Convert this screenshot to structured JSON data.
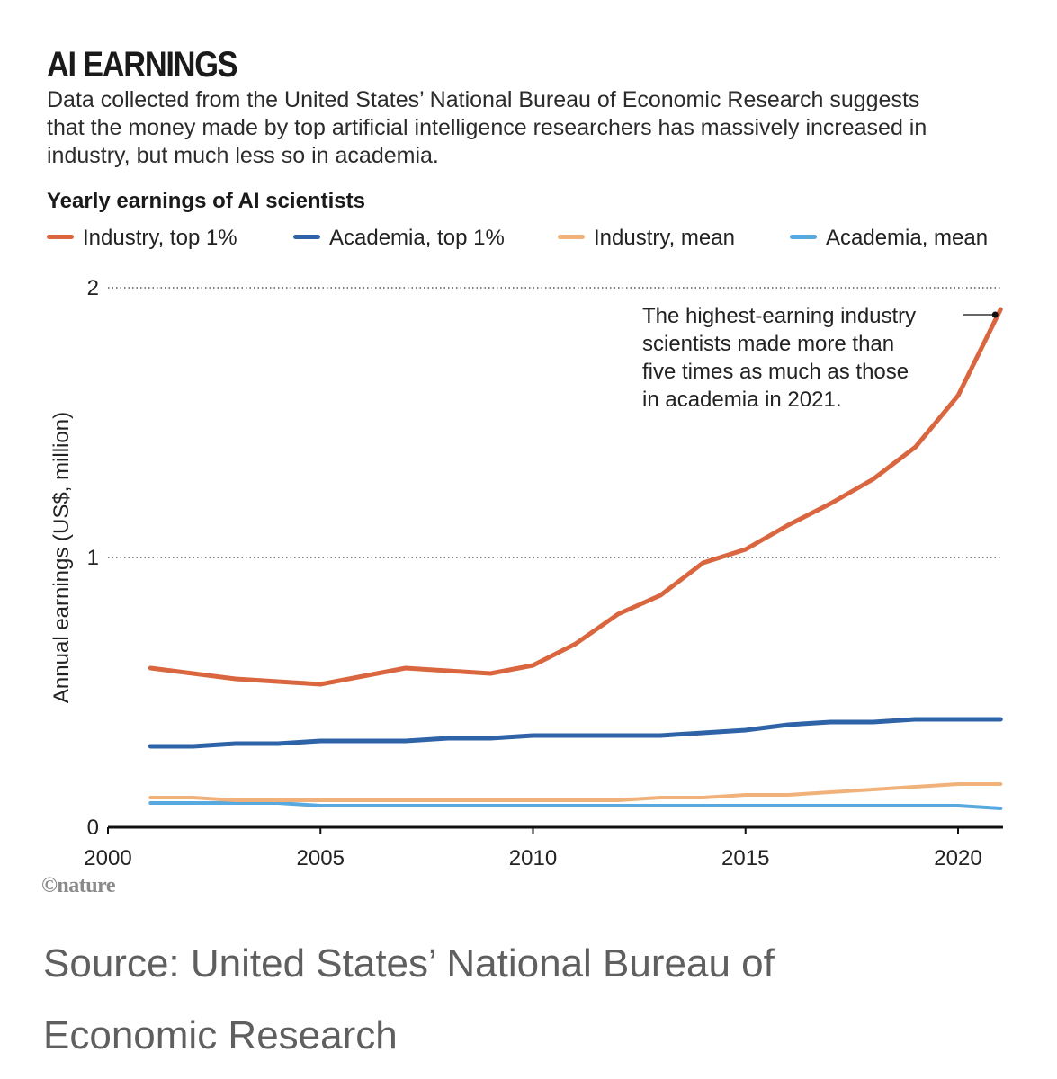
{
  "header": {
    "title": "AI EARNINGS",
    "subtitle": "Data collected from the United States’ National Bureau of Economic Research suggests that the money made by top artificial intelligence researchers has massively increased in industry, but much less so in academia."
  },
  "chart_data": {
    "type": "line",
    "title": "Yearly earnings of AI scientists",
    "xlabel": "",
    "ylabel": "Annual earnings (US$, million)",
    "xlim": [
      2000,
      2021
    ],
    "ylim": [
      0,
      2
    ],
    "x_ticks": [
      2000,
      2005,
      2010,
      2015,
      2020
    ],
    "y_ticks": [
      0,
      1,
      2
    ],
    "grid": "dotted horizontal at 1 and 2",
    "legend_position": "top",
    "x": [
      2001,
      2002,
      2003,
      2004,
      2005,
      2006,
      2007,
      2008,
      2009,
      2010,
      2011,
      2012,
      2013,
      2014,
      2015,
      2016,
      2017,
      2018,
      2019,
      2020,
      2021
    ],
    "series": [
      {
        "name": "Industry, top 1%",
        "color": "#d9663e",
        "values": [
          0.59,
          0.57,
          0.55,
          0.54,
          0.53,
          0.56,
          0.59,
          0.58,
          0.57,
          0.6,
          0.68,
          0.79,
          0.86,
          0.98,
          1.03,
          1.12,
          1.2,
          1.29,
          1.41,
          1.6,
          1.92
        ]
      },
      {
        "name": "Academia, top 1%",
        "color": "#2f63a8",
        "values": [
          0.3,
          0.3,
          0.31,
          0.31,
          0.32,
          0.32,
          0.32,
          0.33,
          0.33,
          0.34,
          0.34,
          0.34,
          0.34,
          0.35,
          0.36,
          0.38,
          0.39,
          0.39,
          0.4,
          0.4,
          0.4
        ]
      },
      {
        "name": "Industry, mean",
        "color": "#f0b27a",
        "values": [
          0.11,
          0.11,
          0.1,
          0.1,
          0.1,
          0.1,
          0.1,
          0.1,
          0.1,
          0.1,
          0.1,
          0.1,
          0.11,
          0.11,
          0.12,
          0.12,
          0.13,
          0.14,
          0.15,
          0.16,
          0.16
        ]
      },
      {
        "name": "Academia, mean",
        "color": "#58a9df",
        "values": [
          0.09,
          0.09,
          0.09,
          0.09,
          0.08,
          0.08,
          0.08,
          0.08,
          0.08,
          0.08,
          0.08,
          0.08,
          0.08,
          0.08,
          0.08,
          0.08,
          0.08,
          0.08,
          0.08,
          0.08,
          0.07
        ]
      }
    ],
    "annotations": [
      {
        "text_lines": [
          "The highest-earning industry",
          "scientists made more than",
          "five times as much as those",
          "in academia in 2021."
        ],
        "x": 2021,
        "y": 1.92
      }
    ]
  },
  "credit": "©nature",
  "source": "Source: United States’ National Bureau of Economic Research"
}
